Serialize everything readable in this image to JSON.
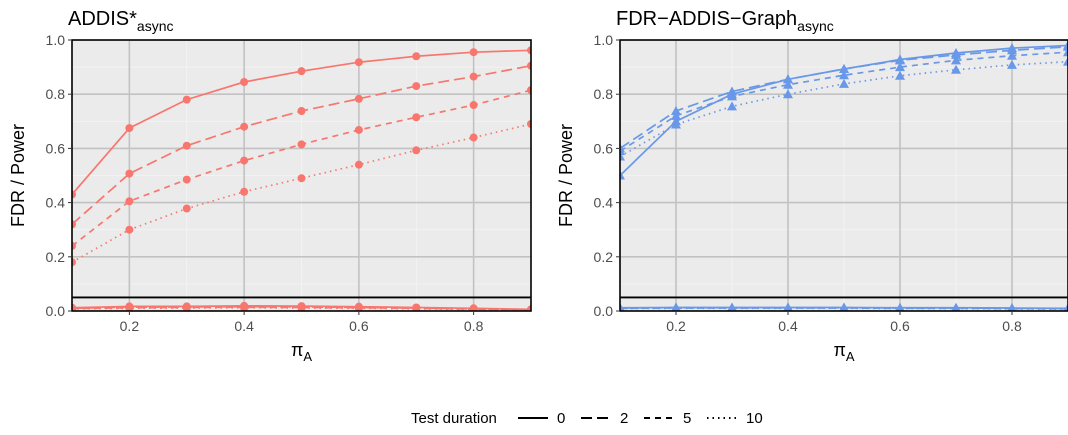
{
  "chart_data": [
    {
      "type": "line",
      "title": "ADDIS*",
      "title_sub": "async",
      "xlabel": "π",
      "xlabel_sub": "A",
      "ylabel": "FDR / Power",
      "xlim": [
        0.1,
        0.9
      ],
      "ylim": [
        0.0,
        1.0
      ],
      "x_ticks": [
        "0.2",
        "0.4",
        "0.6",
        "0.8"
      ],
      "y_ticks": [
        "0.0",
        "0.2",
        "0.4",
        "0.6",
        "0.8",
        "1.0"
      ],
      "color": "#F8766D",
      "marker": "circle",
      "reference_line": 0.05,
      "grid": true,
      "x": [
        0.1,
        0.2,
        0.3,
        0.4,
        0.5,
        0.6,
        0.7,
        0.8,
        0.9
      ],
      "power": [
        {
          "duration": "0",
          "values": [
            0.43,
            0.675,
            0.78,
            0.845,
            0.885,
            0.918,
            0.94,
            0.955,
            0.962
          ]
        },
        {
          "duration": "2",
          "values": [
            0.32,
            0.507,
            0.61,
            0.68,
            0.738,
            0.783,
            0.83,
            0.865,
            0.905
          ]
        },
        {
          "duration": "5",
          "values": [
            0.24,
            0.405,
            0.485,
            0.555,
            0.615,
            0.668,
            0.715,
            0.76,
            0.815
          ]
        },
        {
          "duration": "10",
          "values": [
            0.18,
            0.3,
            0.378,
            0.44,
            0.49,
            0.54,
            0.593,
            0.64,
            0.69
          ]
        }
      ],
      "fdr": [
        {
          "duration": "0",
          "values": [
            0.012,
            0.017,
            0.017,
            0.019,
            0.018,
            0.016,
            0.013,
            0.01,
            0.006
          ]
        },
        {
          "duration": "2",
          "values": [
            0.01,
            0.014,
            0.015,
            0.016,
            0.015,
            0.013,
            0.011,
            0.008,
            0.005
          ]
        },
        {
          "duration": "5",
          "values": [
            0.009,
            0.012,
            0.013,
            0.014,
            0.013,
            0.012,
            0.01,
            0.007,
            0.004
          ]
        },
        {
          "duration": "10",
          "values": [
            0.008,
            0.01,
            0.011,
            0.012,
            0.011,
            0.01,
            0.008,
            0.006,
            0.003
          ]
        }
      ]
    },
    {
      "type": "line",
      "title": "FDR−ADDIS−Graph",
      "title_sub": "async",
      "xlabel": "π",
      "xlabel_sub": "A",
      "ylabel": "FDR / Power",
      "xlim": [
        0.1,
        0.9
      ],
      "ylim": [
        0.0,
        1.0
      ],
      "x_ticks": [
        "0.2",
        "0.4",
        "0.6",
        "0.8"
      ],
      "y_ticks": [
        "0.0",
        "0.2",
        "0.4",
        "0.6",
        "0.8",
        "1.0"
      ],
      "color": "#6A98E8",
      "marker": "triangle",
      "reference_line": 0.05,
      "grid": true,
      "x": [
        0.1,
        0.2,
        0.3,
        0.4,
        0.5,
        0.6,
        0.7,
        0.8,
        0.9
      ],
      "power": [
        {
          "duration": "0",
          "values": [
            0.5,
            0.7,
            0.8,
            0.855,
            0.893,
            0.928,
            0.952,
            0.97,
            0.98
          ]
        },
        {
          "duration": "2",
          "values": [
            0.6,
            0.738,
            0.81,
            0.855,
            0.893,
            0.925,
            0.945,
            0.962,
            0.975
          ]
        },
        {
          "duration": "5",
          "values": [
            0.59,
            0.72,
            0.792,
            0.835,
            0.87,
            0.9,
            0.925,
            0.942,
            0.955
          ]
        },
        {
          "duration": "10",
          "values": [
            0.57,
            0.688,
            0.755,
            0.8,
            0.838,
            0.868,
            0.89,
            0.908,
            0.92
          ]
        }
      ],
      "fdr": [
        {
          "duration": "0",
          "values": [
            0.012,
            0.013,
            0.013,
            0.013,
            0.013,
            0.012,
            0.012,
            0.011,
            0.01
          ]
        },
        {
          "duration": "2",
          "values": [
            0.011,
            0.012,
            0.012,
            0.012,
            0.012,
            0.011,
            0.011,
            0.01,
            0.009
          ]
        },
        {
          "duration": "5",
          "values": [
            0.01,
            0.011,
            0.011,
            0.011,
            0.011,
            0.01,
            0.01,
            0.009,
            0.008
          ]
        },
        {
          "duration": "10",
          "values": [
            0.009,
            0.01,
            0.01,
            0.01,
            0.01,
            0.009,
            0.009,
            0.008,
            0.007
          ]
        }
      ]
    }
  ],
  "legend": {
    "title": "Test duration",
    "placement": "bottom",
    "items": [
      {
        "label": "0",
        "dash": "solid"
      },
      {
        "label": "2",
        "dash": "longdash"
      },
      {
        "label": "5",
        "dash": "dashed"
      },
      {
        "label": "10",
        "dash": "dotted"
      }
    ]
  }
}
